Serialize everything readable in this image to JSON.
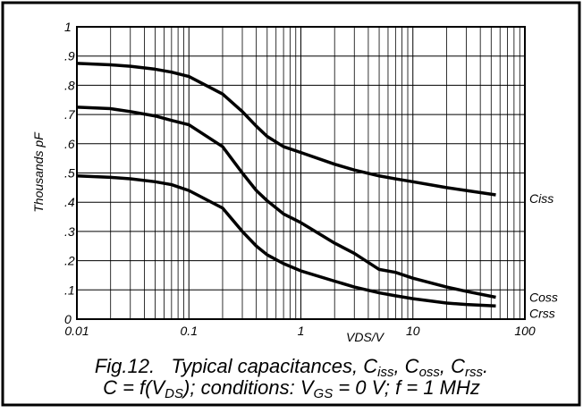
{
  "chart_data": {
    "type": "line",
    "x_label": "VDS/V",
    "y_label": "Thousands pF",
    "caption": [
      [
        {
          "t": "Fig.12.   Typical capacitances, C"
        },
        {
          "sub": "iss"
        },
        {
          "t": ", C"
        },
        {
          "sub": "oss"
        },
        {
          "t": ", C"
        },
        {
          "sub": "rss"
        },
        {
          "t": "."
        }
      ],
      [
        {
          "t": "C = f(V"
        },
        {
          "sub": "DS"
        },
        {
          "t": "); conditions: V"
        },
        {
          "sub": "GS"
        },
        {
          "t": " = 0 V; f = 1 MHz"
        }
      ]
    ],
    "x": [
      0.01,
      0.02,
      0.03,
      0.05,
      0.07,
      0.1,
      0.2,
      0.3,
      0.4,
      0.5,
      0.7,
      1,
      2,
      3,
      5,
      7,
      10,
      20,
      30,
      55
    ],
    "series": [
      {
        "name": "Ciss",
        "color": "#000000",
        "values": [
          0.875,
          0.87,
          0.865,
          0.855,
          0.845,
          0.83,
          0.77,
          0.71,
          0.66,
          0.625,
          0.59,
          0.57,
          0.53,
          0.51,
          0.49,
          0.48,
          0.47,
          0.45,
          0.44,
          0.425
        ]
      },
      {
        "name": "Coss",
        "color": "#000000",
        "values": [
          0.725,
          0.72,
          0.71,
          0.695,
          0.68,
          0.665,
          0.59,
          0.5,
          0.44,
          0.405,
          0.36,
          0.33,
          0.26,
          0.225,
          0.17,
          0.16,
          0.14,
          0.11,
          0.095,
          0.075
        ]
      },
      {
        "name": "Crss",
        "color": "#000000",
        "values": [
          0.49,
          0.485,
          0.48,
          0.47,
          0.46,
          0.44,
          0.38,
          0.3,
          0.25,
          0.22,
          0.19,
          0.165,
          0.13,
          0.11,
          0.09,
          0.08,
          0.07,
          0.055,
          0.05,
          0.045
        ]
      }
    ],
    "xlim": [
      0.01,
      100
    ],
    "xticks": [
      0.01,
      0.1,
      1,
      10,
      100
    ],
    "xscale": "log",
    "ylim": [
      0,
      1
    ],
    "yticks": [
      0,
      {
        "value": 0.1,
        "label": ".1"
      },
      {
        "value": 0.2,
        "label": ".2"
      },
      {
        "value": 0.3,
        "label": ".3"
      },
      {
        "value": 0.4,
        "label": ".4"
      },
      {
        "value": 0.5,
        "label": ".5"
      },
      {
        "value": 0.6,
        "label": ".6"
      },
      {
        "value": 0.7,
        "label": ".7"
      },
      {
        "value": 0.8,
        "label": ".8"
      },
      {
        "value": 0.9,
        "label": ".9"
      },
      1
    ],
    "grid": true
  }
}
